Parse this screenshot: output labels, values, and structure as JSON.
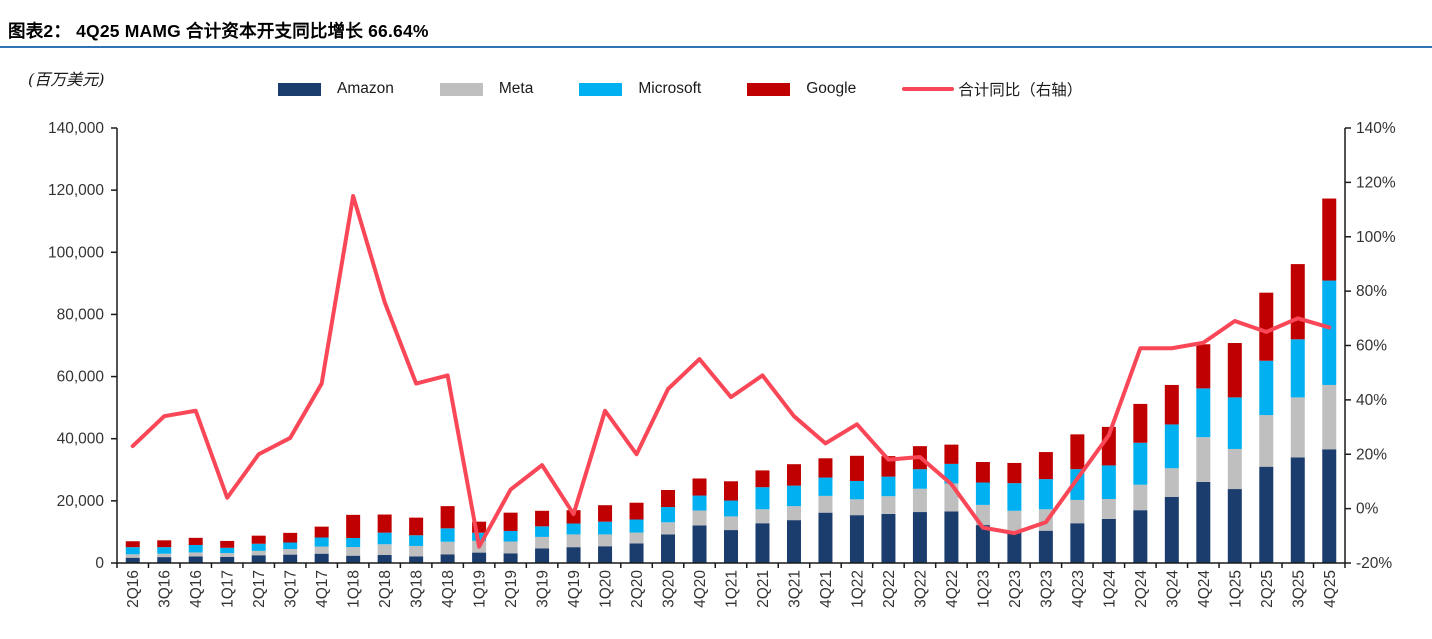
{
  "title": "图表2：  4Q25 MAMG 合计资本开支同比增长 66.64%",
  "unit_label": "(百万美元)",
  "legend": [
    {
      "label": "Amazon",
      "color": "#1B3D6D",
      "type": "bar"
    },
    {
      "label": "Meta",
      "color": "#BFBFBF",
      "type": "bar"
    },
    {
      "label": "Microsoft",
      "color": "#00B0F0",
      "type": "bar"
    },
    {
      "label": "Google",
      "color": "#C00000",
      "type": "bar"
    },
    {
      "label": "合计同比（右轴）",
      "color": "#FA4757",
      "type": "line"
    }
  ],
  "colors": {
    "amazon": "#1B3D6D",
    "meta": "#BFBFBF",
    "microsoft": "#00B0F0",
    "google": "#C00000",
    "yoy_line": "#FA4757",
    "title_rule": "#2E74B5",
    "axis": "#1a1a1a",
    "tick_text": "#333333"
  },
  "chart_data": {
    "type": "bar",
    "subtype": "stacked-bar-with-line",
    "title": "4Q25 MAMG 合计资本开支同比增长 66.64%",
    "unit": "百万美元",
    "grid": false,
    "legend_position": "top",
    "categories": [
      "2Q16",
      "3Q16",
      "4Q16",
      "1Q17",
      "2Q17",
      "3Q17",
      "4Q17",
      "1Q18",
      "2Q18",
      "3Q18",
      "4Q18",
      "1Q19",
      "2Q19",
      "3Q19",
      "4Q19",
      "1Q20",
      "2Q20",
      "3Q20",
      "4Q20",
      "1Q21",
      "2Q21",
      "3Q21",
      "4Q21",
      "1Q22",
      "2Q22",
      "3Q22",
      "4Q22",
      "1Q23",
      "2Q23",
      "3Q23",
      "4Q23",
      "1Q24",
      "2Q24",
      "3Q24",
      "4Q24",
      "1Q25",
      "2Q25",
      "3Q25",
      "4Q25"
    ],
    "series": [
      {
        "name": "Amazon",
        "kind": "bar",
        "axis": "left",
        "color": "#1B3D6D",
        "values": [
          1700,
          1900,
          2100,
          2000,
          2500,
          2700,
          3000,
          2350,
          2570,
          2150,
          2800,
          3350,
          3120,
          4700,
          5100,
          5400,
          6300,
          9200,
          12100,
          10600,
          12800,
          13800,
          16200,
          15400,
          15800,
          16400,
          16600,
          12200,
          9900,
          10400,
          12800,
          14200,
          17000,
          21300,
          26100,
          23800,
          31000,
          34000,
          36600
        ]
      },
      {
        "name": "Meta",
        "kind": "bar",
        "axis": "left",
        "color": "#BFBFBF",
        "values": [
          1100,
          1100,
          1300,
          1200,
          1400,
          1800,
          2300,
          2800,
          3460,
          3340,
          4050,
          3800,
          3800,
          3700,
          4100,
          3800,
          3500,
          3900,
          4800,
          4400,
          4500,
          4500,
          5400,
          5100,
          5700,
          7500,
          9000,
          6500,
          6900,
          6900,
          7500,
          6400,
          8200,
          9200,
          14400,
          12900,
          16600,
          19300,
          20700
        ]
      },
      {
        "name": "Microsoft",
        "kind": "bar",
        "axis": "left",
        "color": "#00B0F0",
        "values": [
          2300,
          2100,
          2400,
          1700,
          2300,
          2100,
          2900,
          2900,
          3740,
          3440,
          4310,
          2600,
          3400,
          3400,
          3500,
          4100,
          4200,
          4900,
          4800,
          5100,
          7100,
          6600,
          5900,
          5900,
          6300,
          6300,
          6300,
          7200,
          8900,
          9700,
          9900,
          10800,
          13500,
          14100,
          15700,
          16600,
          17500,
          18700,
          33600
        ]
      },
      {
        "name": "Google",
        "kind": "bar",
        "axis": "left",
        "color": "#C00000",
        "values": [
          1900,
          2200,
          2300,
          2200,
          2600,
          3100,
          3500,
          7450,
          5830,
          5670,
          7140,
          3550,
          5880,
          5000,
          4300,
          5300,
          5400,
          5500,
          5500,
          6200,
          5400,
          6900,
          6200,
          8100,
          6600,
          7400,
          6200,
          6600,
          6500,
          8700,
          11200,
          12400,
          12500,
          12700,
          14200,
          17500,
          21900,
          24200,
          26400
        ]
      },
      {
        "name": "合计同比（右轴）",
        "kind": "line",
        "axis": "right",
        "color": "#FA4757",
        "values": [
          23,
          34,
          36,
          4,
          20,
          26,
          46,
          115,
          76,
          46,
          49,
          -14,
          7,
          16,
          -2,
          36,
          20,
          44,
          55,
          41,
          49,
          34,
          24,
          31,
          18,
          19,
          9,
          -7,
          -9,
          -5,
          11,
          27,
          59,
          59,
          61,
          69,
          65,
          70,
          66.64
        ]
      }
    ],
    "left_axis": {
      "min": 0,
      "max": 140000,
      "step": 20000,
      "tick_labels": [
        "0",
        "20,000",
        "40,000",
        "60,000",
        "80,000",
        "100,000",
        "120,000",
        "140,000"
      ]
    },
    "right_axis": {
      "min": -20,
      "max": 140,
      "step": 20,
      "suffix": "%",
      "tick_labels": [
        "-20%",
        "0%",
        "20%",
        "40%",
        "60%",
        "80%",
        "100%",
        "120%",
        "140%"
      ]
    }
  }
}
